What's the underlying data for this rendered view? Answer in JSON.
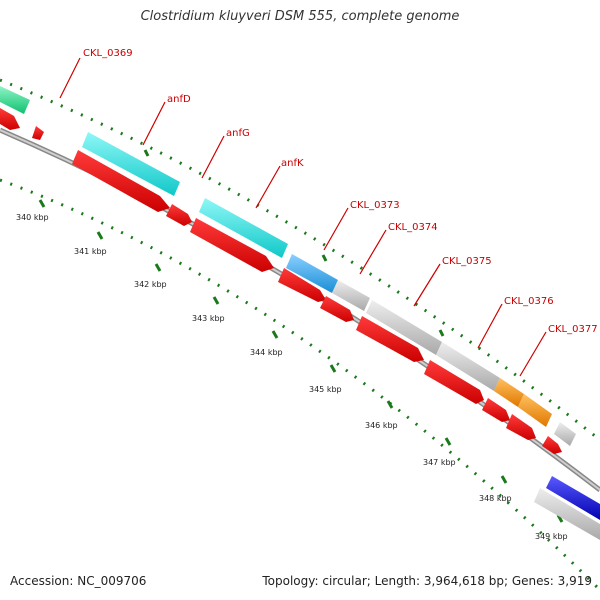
{
  "title": "Clostridium kluyveri DSM 555, complete genome",
  "accession": "Accession: NC_009706",
  "summary": "Topology: circular; Length: 3,964,618 bp; Genes: 3,919",
  "colors": {
    "backbone": "#9a9a9a",
    "forward_gene": "#ff0000",
    "tick": "#1a7a1a",
    "label_text": "#cc0000",
    "leader_line": "#cc0000",
    "cyan_gene": "#22e5e5",
    "blue_gene": "#2aa0e0",
    "grey_gene": "#c0c0c0",
    "orange_gene": "#ff9900",
    "green_gene": "#22dd88",
    "darkblue_gene": "#0000dd"
  },
  "scale_labels": [
    "340 kbp",
    "341 kbp",
    "342 kbp",
    "343 kbp",
    "344 kbp",
    "345 kbp",
    "346 kbp",
    "347 kbp",
    "348 kbp",
    "349 kbp"
  ],
  "gene_labels": [
    "CKL_0369",
    "anfD",
    "anfG",
    "anfK",
    "CKL_0373",
    "CKL_0374",
    "CKL_0375",
    "CKL_0376",
    "CKL_0377"
  ]
}
